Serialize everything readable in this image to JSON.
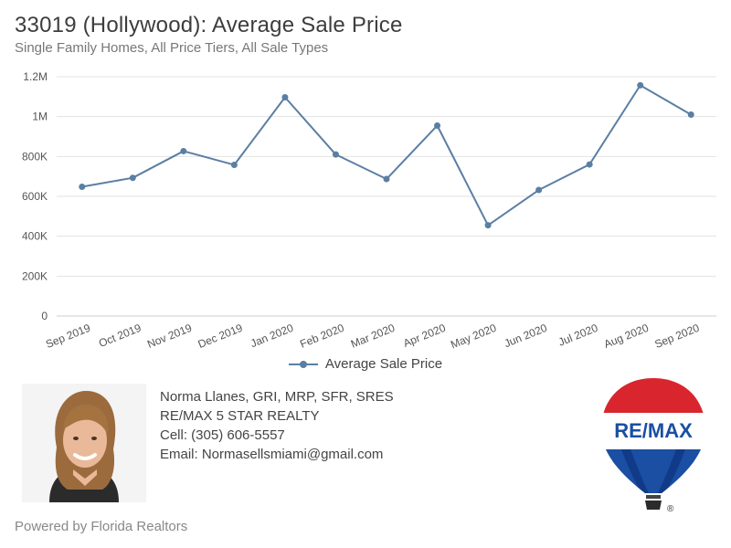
{
  "header": {
    "title": "33019 (Hollywood): Average Sale Price",
    "subtitle": "Single Family Homes, All Price Tiers, All Sale Types"
  },
  "chart_data": {
    "type": "line",
    "title": "33019 (Hollywood): Average Sale Price",
    "subtitle": "Single Family Homes, All Price Tiers, All Sale Types",
    "categories": [
      "Sep 2019",
      "Oct 2019",
      "Nov 2019",
      "Dec 2019",
      "Jan 2020",
      "Feb 2020",
      "Mar 2020",
      "Apr 2020",
      "May 2020",
      "Jun 2020",
      "Jul 2020",
      "Aug 2020",
      "Sep 2020"
    ],
    "series": [
      {
        "name": "Average Sale Price",
        "values": [
          648000,
          693000,
          827000,
          758000,
          1097000,
          810000,
          687000,
          955000,
          455000,
          632000,
          760000,
          1157000,
          1010000
        ],
        "color": "#5b7fa3"
      }
    ],
    "ylim": [
      0,
      1200000
    ],
    "yticks": [
      0,
      200000,
      400000,
      600000,
      800000,
      1000000,
      1200000
    ],
    "ytick_labels": [
      "0",
      "200K",
      "400K",
      "600K",
      "800K",
      "1M",
      "1.2M"
    ],
    "grid": true,
    "legend": "bottom-center",
    "xlabel": "",
    "ylabel": ""
  },
  "legend": {
    "label": "Average Sale Price"
  },
  "agent": {
    "name": "Norma Llanes, GRI, MRP, SFR, SRES",
    "company": "RE/MAX 5 STAR REALTY",
    "cell": "Cell: (305) 606-5557",
    "email": "Email: Normasellsmiami@gmail.com"
  },
  "logo": {
    "text": "RE/MAX",
    "mark": "®",
    "colors": {
      "red": "#d9262e",
      "blue": "#1a4fa3",
      "navy": "#0b2e78"
    }
  },
  "footer": {
    "text": "Powered by Florida Realtors"
  }
}
